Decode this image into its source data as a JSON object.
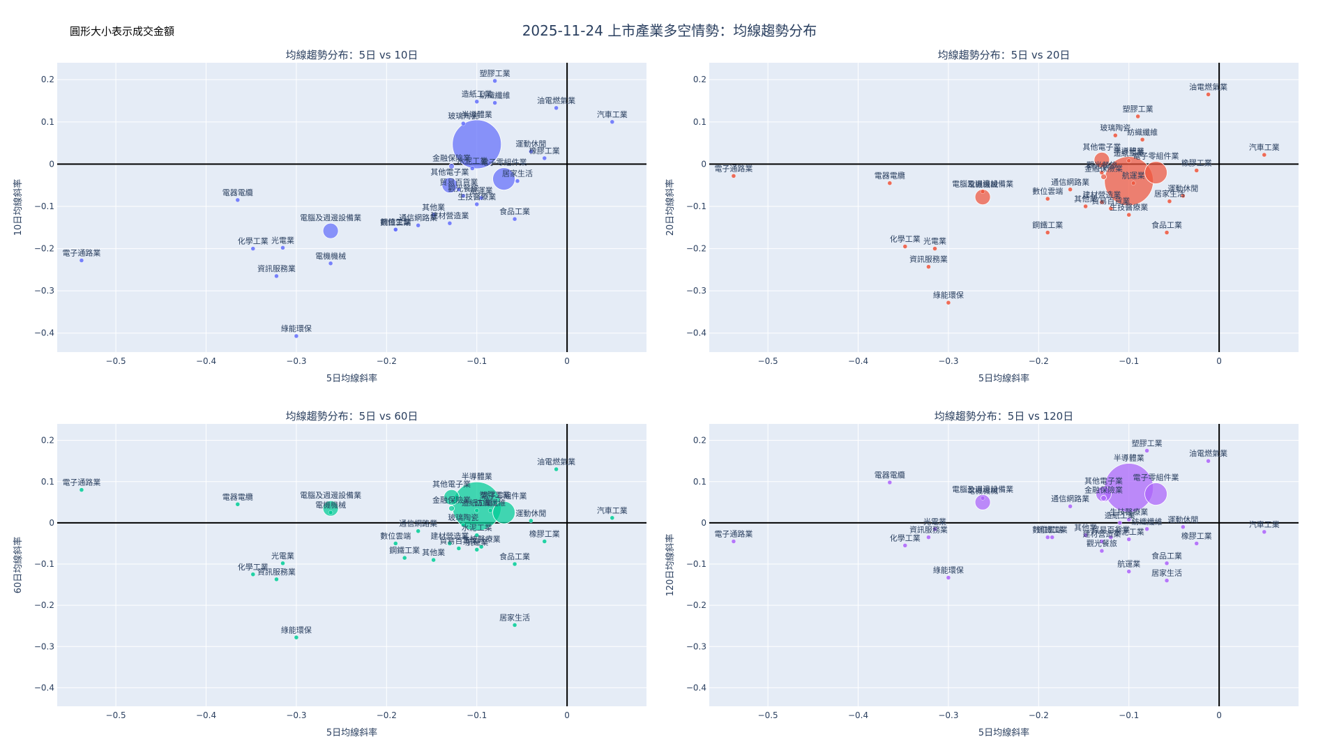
{
  "title": "2025-11-24 上市產業多空情勢：均線趨勢分布",
  "size_note": "圓形大小表示成交金額",
  "x_axis_label": "5日均線斜率",
  "chart_data": [
    {
      "type": "scatter",
      "title": "均線趨勢分布：5日 vs 10日",
      "xlabel": "5日均線斜率",
      "ylabel": "10日均線斜率",
      "xlim": [
        -0.565,
        0.088
      ],
      "ylim": [
        -0.445,
        0.24
      ],
      "xticks": [
        -0.5,
        -0.4,
        -0.3,
        -0.2,
        -0.1,
        0
      ],
      "yticks": [
        0.2,
        0.1,
        0,
        -0.1,
        -0.2,
        -0.3,
        -0.4
      ],
      "color": "#636efa",
      "points": [
        {
          "name": "塑膠工業",
          "x": -0.08,
          "y": 0.197,
          "size": 3
        },
        {
          "name": "造紙工業",
          "x": -0.1,
          "y": 0.148,
          "size": 3
        },
        {
          "name": "紡織纖維",
          "x": -0.08,
          "y": 0.145,
          "size": 3
        },
        {
          "name": "油電燃氣業",
          "x": -0.012,
          "y": 0.133,
          "size": 3
        },
        {
          "name": "汽車工業",
          "x": 0.05,
          "y": 0.1,
          "size": 3
        },
        {
          "name": "玻璃陶瓷",
          "x": -0.115,
          "y": 0.096,
          "size": 3
        },
        {
          "name": "半導體業",
          "x": -0.1,
          "y": 0.047,
          "size": 35
        },
        {
          "name": "運動休閒",
          "x": -0.04,
          "y": 0.03,
          "size": 3
        },
        {
          "name": "橡膠工業",
          "x": -0.025,
          "y": 0.014,
          "size": 3
        },
        {
          "name": "金融保險業",
          "x": -0.128,
          "y": -0.005,
          "size": 4
        },
        {
          "name": "水泥工業",
          "x": -0.105,
          "y": -0.01,
          "size": 3
        },
        {
          "name": "電子零組件業",
          "x": -0.07,
          "y": -0.035,
          "size": 16
        },
        {
          "name": "居家生活",
          "x": -0.055,
          "y": -0.04,
          "size": 3
        },
        {
          "name": "其他電子業",
          "x": -0.13,
          "y": -0.05,
          "size": 11
        },
        {
          "name": "貿易百貨業",
          "x": -0.12,
          "y": -0.06,
          "size": 3
        },
        {
          "name": "觀光餐旅",
          "x": -0.115,
          "y": -0.075,
          "size": 3
        },
        {
          "name": "航運業",
          "x": -0.095,
          "y": -0.08,
          "size": 3
        },
        {
          "name": "生技醫療業",
          "x": -0.1,
          "y": -0.095,
          "size": 3
        },
        {
          "name": "電腦及週邊設備業",
          "x": -0.262,
          "y": -0.158,
          "size": 11
        },
        {
          "name": "電器電纜",
          "x": -0.365,
          "y": -0.085,
          "size": 3
        },
        {
          "name": "鋼鐵工業",
          "x": -0.19,
          "y": -0.155,
          "size": 3
        },
        {
          "name": "通信網路業",
          "x": -0.165,
          "y": -0.145,
          "size": 3
        },
        {
          "name": "其他業",
          "x": -0.148,
          "y": -0.12,
          "size": 3
        },
        {
          "name": "建材營造業",
          "x": -0.13,
          "y": -0.14,
          "size": 3
        },
        {
          "name": "數位雲端",
          "x": -0.19,
          "y": -0.155,
          "size": 3
        },
        {
          "name": "食品工業",
          "x": -0.058,
          "y": -0.13,
          "size": 3
        },
        {
          "name": "化學工業",
          "x": -0.348,
          "y": -0.2,
          "size": 3
        },
        {
          "name": "光電業",
          "x": -0.315,
          "y": -0.198,
          "size": 3
        },
        {
          "name": "電子通路業",
          "x": -0.538,
          "y": -0.228,
          "size": 3
        },
        {
          "name": "電機機械",
          "x": -0.262,
          "y": -0.235,
          "size": 3
        },
        {
          "name": "資訊服務業",
          "x": -0.322,
          "y": -0.265,
          "size": 3
        },
        {
          "name": "綠能環保",
          "x": -0.3,
          "y": -0.407,
          "size": 3
        }
      ]
    },
    {
      "type": "scatter",
      "title": "均線趨勢分布：5日 vs 20日",
      "xlabel": "5日均線斜率",
      "ylabel": "20日均線斜率",
      "xlim": [
        -0.565,
        0.088
      ],
      "ylim": [
        -0.445,
        0.24
      ],
      "xticks": [
        -0.5,
        -0.4,
        -0.3,
        -0.2,
        -0.1,
        0
      ],
      "yticks": [
        0.2,
        0.1,
        0,
        -0.1,
        -0.2,
        -0.3,
        -0.4
      ],
      "color": "#ef553b",
      "points": [
        {
          "name": "油電燃氣業",
          "x": -0.012,
          "y": 0.165,
          "size": 3
        },
        {
          "name": "塑膠工業",
          "x": -0.09,
          "y": 0.113,
          "size": 3
        },
        {
          "name": "半導體業",
          "x": -0.1,
          "y": -0.04,
          "size": 35
        },
        {
          "name": "玻璃陶瓷",
          "x": -0.115,
          "y": 0.068,
          "size": 3
        },
        {
          "name": "紡織纖維",
          "x": -0.085,
          "y": 0.058,
          "size": 3
        },
        {
          "name": "汽車工業",
          "x": 0.05,
          "y": 0.022,
          "size": 3
        },
        {
          "name": "其他電子業",
          "x": -0.13,
          "y": 0.01,
          "size": 11
        },
        {
          "name": "造紙工業",
          "x": -0.1,
          "y": 0.008,
          "size": 3
        },
        {
          "name": "電子零組件業",
          "x": -0.07,
          "y": -0.02,
          "size": 16
        },
        {
          "name": "橡膠工業",
          "x": -0.025,
          "y": -0.015,
          "size": 3
        },
        {
          "name": "觀光餐旅",
          "x": -0.13,
          "y": -0.02,
          "size": 3
        },
        {
          "name": "金融保險業",
          "x": -0.128,
          "y": -0.03,
          "size": 4
        },
        {
          "name": "航運業",
          "x": -0.095,
          "y": -0.045,
          "size": 3
        },
        {
          "name": "運動休閒",
          "x": -0.04,
          "y": -0.075,
          "size": 3
        },
        {
          "name": "電腦及週邊設備業",
          "x": -0.262,
          "y": -0.078,
          "size": 11
        },
        {
          "name": "電機機械",
          "x": -0.262,
          "y": -0.065,
          "size": 3
        },
        {
          "name": "電器電纜",
          "x": -0.365,
          "y": -0.045,
          "size": 3
        },
        {
          "name": "電子通路業",
          "x": -0.538,
          "y": -0.028,
          "size": 3
        },
        {
          "name": "通信網路業",
          "x": -0.165,
          "y": -0.06,
          "size": 3
        },
        {
          "name": "數位雲端",
          "x": -0.19,
          "y": -0.082,
          "size": 3
        },
        {
          "name": "居家生活",
          "x": -0.055,
          "y": -0.088,
          "size": 3
        },
        {
          "name": "建材營造業",
          "x": -0.13,
          "y": -0.09,
          "size": 3
        },
        {
          "name": "其他業",
          "x": -0.148,
          "y": -0.1,
          "size": 3
        },
        {
          "name": "貿易百貨業",
          "x": -0.12,
          "y": -0.105,
          "size": 3
        },
        {
          "name": "生技醫療業",
          "x": -0.1,
          "y": -0.12,
          "size": 3
        },
        {
          "name": "食品工業",
          "x": -0.058,
          "y": -0.162,
          "size": 3
        },
        {
          "name": "鋼鐵工業",
          "x": -0.19,
          "y": -0.162,
          "size": 3
        },
        {
          "name": "化學工業",
          "x": -0.348,
          "y": -0.195,
          "size": 3
        },
        {
          "name": "光電業",
          "x": -0.315,
          "y": -0.2,
          "size": 3
        },
        {
          "name": "資訊服務業",
          "x": -0.322,
          "y": -0.243,
          "size": 3
        },
        {
          "name": "綠能環保",
          "x": -0.3,
          "y": -0.328,
          "size": 3
        }
      ]
    },
    {
      "type": "scatter",
      "title": "均線趨勢分布：5日 vs 60日",
      "xlabel": "5日均線斜率",
      "ylabel": "60日均線斜率",
      "xlim": [
        -0.565,
        0.088
      ],
      "ylim": [
        -0.445,
        0.24
      ],
      "xticks": [
        -0.5,
        -0.4,
        -0.3,
        -0.2,
        -0.1,
        0
      ],
      "yticks": [
        0.2,
        0.1,
        0,
        -0.1,
        -0.2,
        -0.3,
        -0.4
      ],
      "color": "#00cc96",
      "points": [
        {
          "name": "半導體業",
          "x": -0.1,
          "y": 0.04,
          "size": 35
        },
        {
          "name": "油電燃氣業",
          "x": -0.012,
          "y": 0.13,
          "size": 3
        },
        {
          "name": "電子零組件業",
          "x": -0.07,
          "y": 0.025,
          "size": 16
        },
        {
          "name": "塑膠工業",
          "x": -0.08,
          "y": 0.05,
          "size": 3
        },
        {
          "name": "紡織纖維",
          "x": -0.085,
          "y": 0.03,
          "size": 3
        },
        {
          "name": "其他電子業",
          "x": -0.128,
          "y": 0.062,
          "size": 11
        },
        {
          "name": "造紙工業",
          "x": -0.1,
          "y": 0.03,
          "size": 3
        },
        {
          "name": "金融保險業",
          "x": -0.128,
          "y": 0.035,
          "size": 4
        },
        {
          "name": "運動休閒",
          "x": -0.04,
          "y": 0.005,
          "size": 3
        },
        {
          "name": "汽車工業",
          "x": 0.05,
          "y": 0.012,
          "size": 3
        },
        {
          "name": "電子通路業",
          "x": -0.538,
          "y": 0.08,
          "size": 3
        },
        {
          "name": "電器電纜",
          "x": -0.365,
          "y": 0.045,
          "size": 3
        },
        {
          "name": "電腦及週邊設備業",
          "x": -0.262,
          "y": 0.035,
          "size": 11
        },
        {
          "name": "電機機械",
          "x": -0.262,
          "y": 0.025,
          "size": 3
        },
        {
          "name": "玻璃陶瓷",
          "x": -0.115,
          "y": -0.005,
          "size": 3
        },
        {
          "name": "水泥工業",
          "x": -0.1,
          "y": -0.03,
          "size": 3
        },
        {
          "name": "通信網路業",
          "x": -0.165,
          "y": -0.02,
          "size": 3
        },
        {
          "name": "數位雲端",
          "x": -0.19,
          "y": -0.05,
          "size": 3
        },
        {
          "name": "建材營造業",
          "x": -0.13,
          "y": -0.05,
          "size": 3
        },
        {
          "name": "貿易百貨業",
          "x": -0.12,
          "y": -0.062,
          "size": 3
        },
        {
          "name": "生技醫療業",
          "x": -0.095,
          "y": -0.058,
          "size": 3
        },
        {
          "name": "航運業",
          "x": -0.1,
          "y": -0.065,
          "size": 3
        },
        {
          "name": "橡膠工業",
          "x": -0.025,
          "y": -0.045,
          "size": 3
        },
        {
          "name": "鋼鐵工業",
          "x": -0.18,
          "y": -0.085,
          "size": 3
        },
        {
          "name": "其他業",
          "x": -0.148,
          "y": -0.09,
          "size": 3
        },
        {
          "name": "食品工業",
          "x": -0.058,
          "y": -0.1,
          "size": 3
        },
        {
          "name": "光電業",
          "x": -0.315,
          "y": -0.098,
          "size": 3
        },
        {
          "name": "化學工業",
          "x": -0.348,
          "y": -0.125,
          "size": 3
        },
        {
          "name": "資訊服務業",
          "x": -0.322,
          "y": -0.137,
          "size": 3
        },
        {
          "name": "居家生活",
          "x": -0.058,
          "y": -0.248,
          "size": 3
        },
        {
          "name": "綠能環保",
          "x": -0.3,
          "y": -0.278,
          "size": 3
        }
      ]
    },
    {
      "type": "scatter",
      "title": "均線趨勢分布：5日 vs 120日",
      "xlabel": "5日均線斜率",
      "ylabel": "120日均線斜率",
      "xlim": [
        -0.565,
        0.088
      ],
      "ylim": [
        -0.445,
        0.24
      ],
      "xticks": [
        -0.5,
        -0.4,
        -0.3,
        -0.2,
        -0.1,
        0
      ],
      "yticks": [
        0.2,
        0.1,
        0,
        -0.1,
        -0.2,
        -0.3,
        -0.4
      ],
      "color": "#ab63fa",
      "points": [
        {
          "name": "半導體業",
          "x": -0.1,
          "y": 0.085,
          "size": 35
        },
        {
          "name": "塑膠工業",
          "x": -0.08,
          "y": 0.175,
          "size": 3
        },
        {
          "name": "油電燃氣業",
          "x": -0.012,
          "y": 0.15,
          "size": 3
        },
        {
          "name": "其他電子業",
          "x": -0.128,
          "y": 0.07,
          "size": 11
        },
        {
          "name": "金融保險業",
          "x": -0.128,
          "y": 0.06,
          "size": 4
        },
        {
          "name": "電子零組件業",
          "x": -0.07,
          "y": 0.07,
          "size": 16
        },
        {
          "name": "電器電纜",
          "x": -0.365,
          "y": 0.098,
          "size": 3
        },
        {
          "name": "電腦及週邊設備業",
          "x": -0.262,
          "y": 0.05,
          "size": 11
        },
        {
          "name": "電機機械",
          "x": -0.262,
          "y": 0.06,
          "size": 3
        },
        {
          "name": "通信網路業",
          "x": -0.165,
          "y": 0.04,
          "size": 3
        },
        {
          "name": "生技醫療業",
          "x": -0.1,
          "y": 0.008,
          "size": 3
        },
        {
          "name": "造紙工業",
          "x": -0.11,
          "y": 0.0,
          "size": 3
        },
        {
          "name": "運動休閒",
          "x": -0.04,
          "y": -0.01,
          "size": 3
        },
        {
          "name": "紡織纖維",
          "x": -0.08,
          "y": -0.015,
          "size": 3
        },
        {
          "name": "橡膠工業",
          "x": -0.025,
          "y": -0.05,
          "size": 3
        },
        {
          "name": "汽車工業",
          "x": 0.05,
          "y": -0.022,
          "size": 3
        },
        {
          "name": "電子通路業",
          "x": -0.538,
          "y": -0.045,
          "size": 3
        },
        {
          "name": "光電業",
          "x": -0.315,
          "y": -0.015,
          "size": 3
        },
        {
          "name": "資訊服務業",
          "x": -0.322,
          "y": -0.035,
          "size": 3
        },
        {
          "name": "化學工業",
          "x": -0.348,
          "y": -0.055,
          "size": 3
        },
        {
          "name": "數位雲端",
          "x": -0.19,
          "y": -0.035,
          "size": 3
        },
        {
          "name": "鋼鐵工業",
          "x": -0.185,
          "y": -0.035,
          "size": 3
        },
        {
          "name": "其他業",
          "x": -0.148,
          "y": -0.03,
          "size": 3
        },
        {
          "name": "貿易百貨業",
          "x": -0.12,
          "y": -0.035,
          "size": 3
        },
        {
          "name": "建材營造業",
          "x": -0.13,
          "y": -0.045,
          "size": 3
        },
        {
          "name": "觀光餐旅",
          "x": -0.13,
          "y": -0.068,
          "size": 3
        },
        {
          "name": "水泥工業",
          "x": -0.1,
          "y": -0.04,
          "size": 3
        },
        {
          "name": "食品工業",
          "x": -0.058,
          "y": -0.098,
          "size": 3
        },
        {
          "name": "航運業",
          "x": -0.1,
          "y": -0.118,
          "size": 3
        },
        {
          "name": "居家生活",
          "x": -0.058,
          "y": -0.14,
          "size": 3
        },
        {
          "name": "綠能環保",
          "x": -0.3,
          "y": -0.133,
          "size": 3
        }
      ]
    }
  ]
}
